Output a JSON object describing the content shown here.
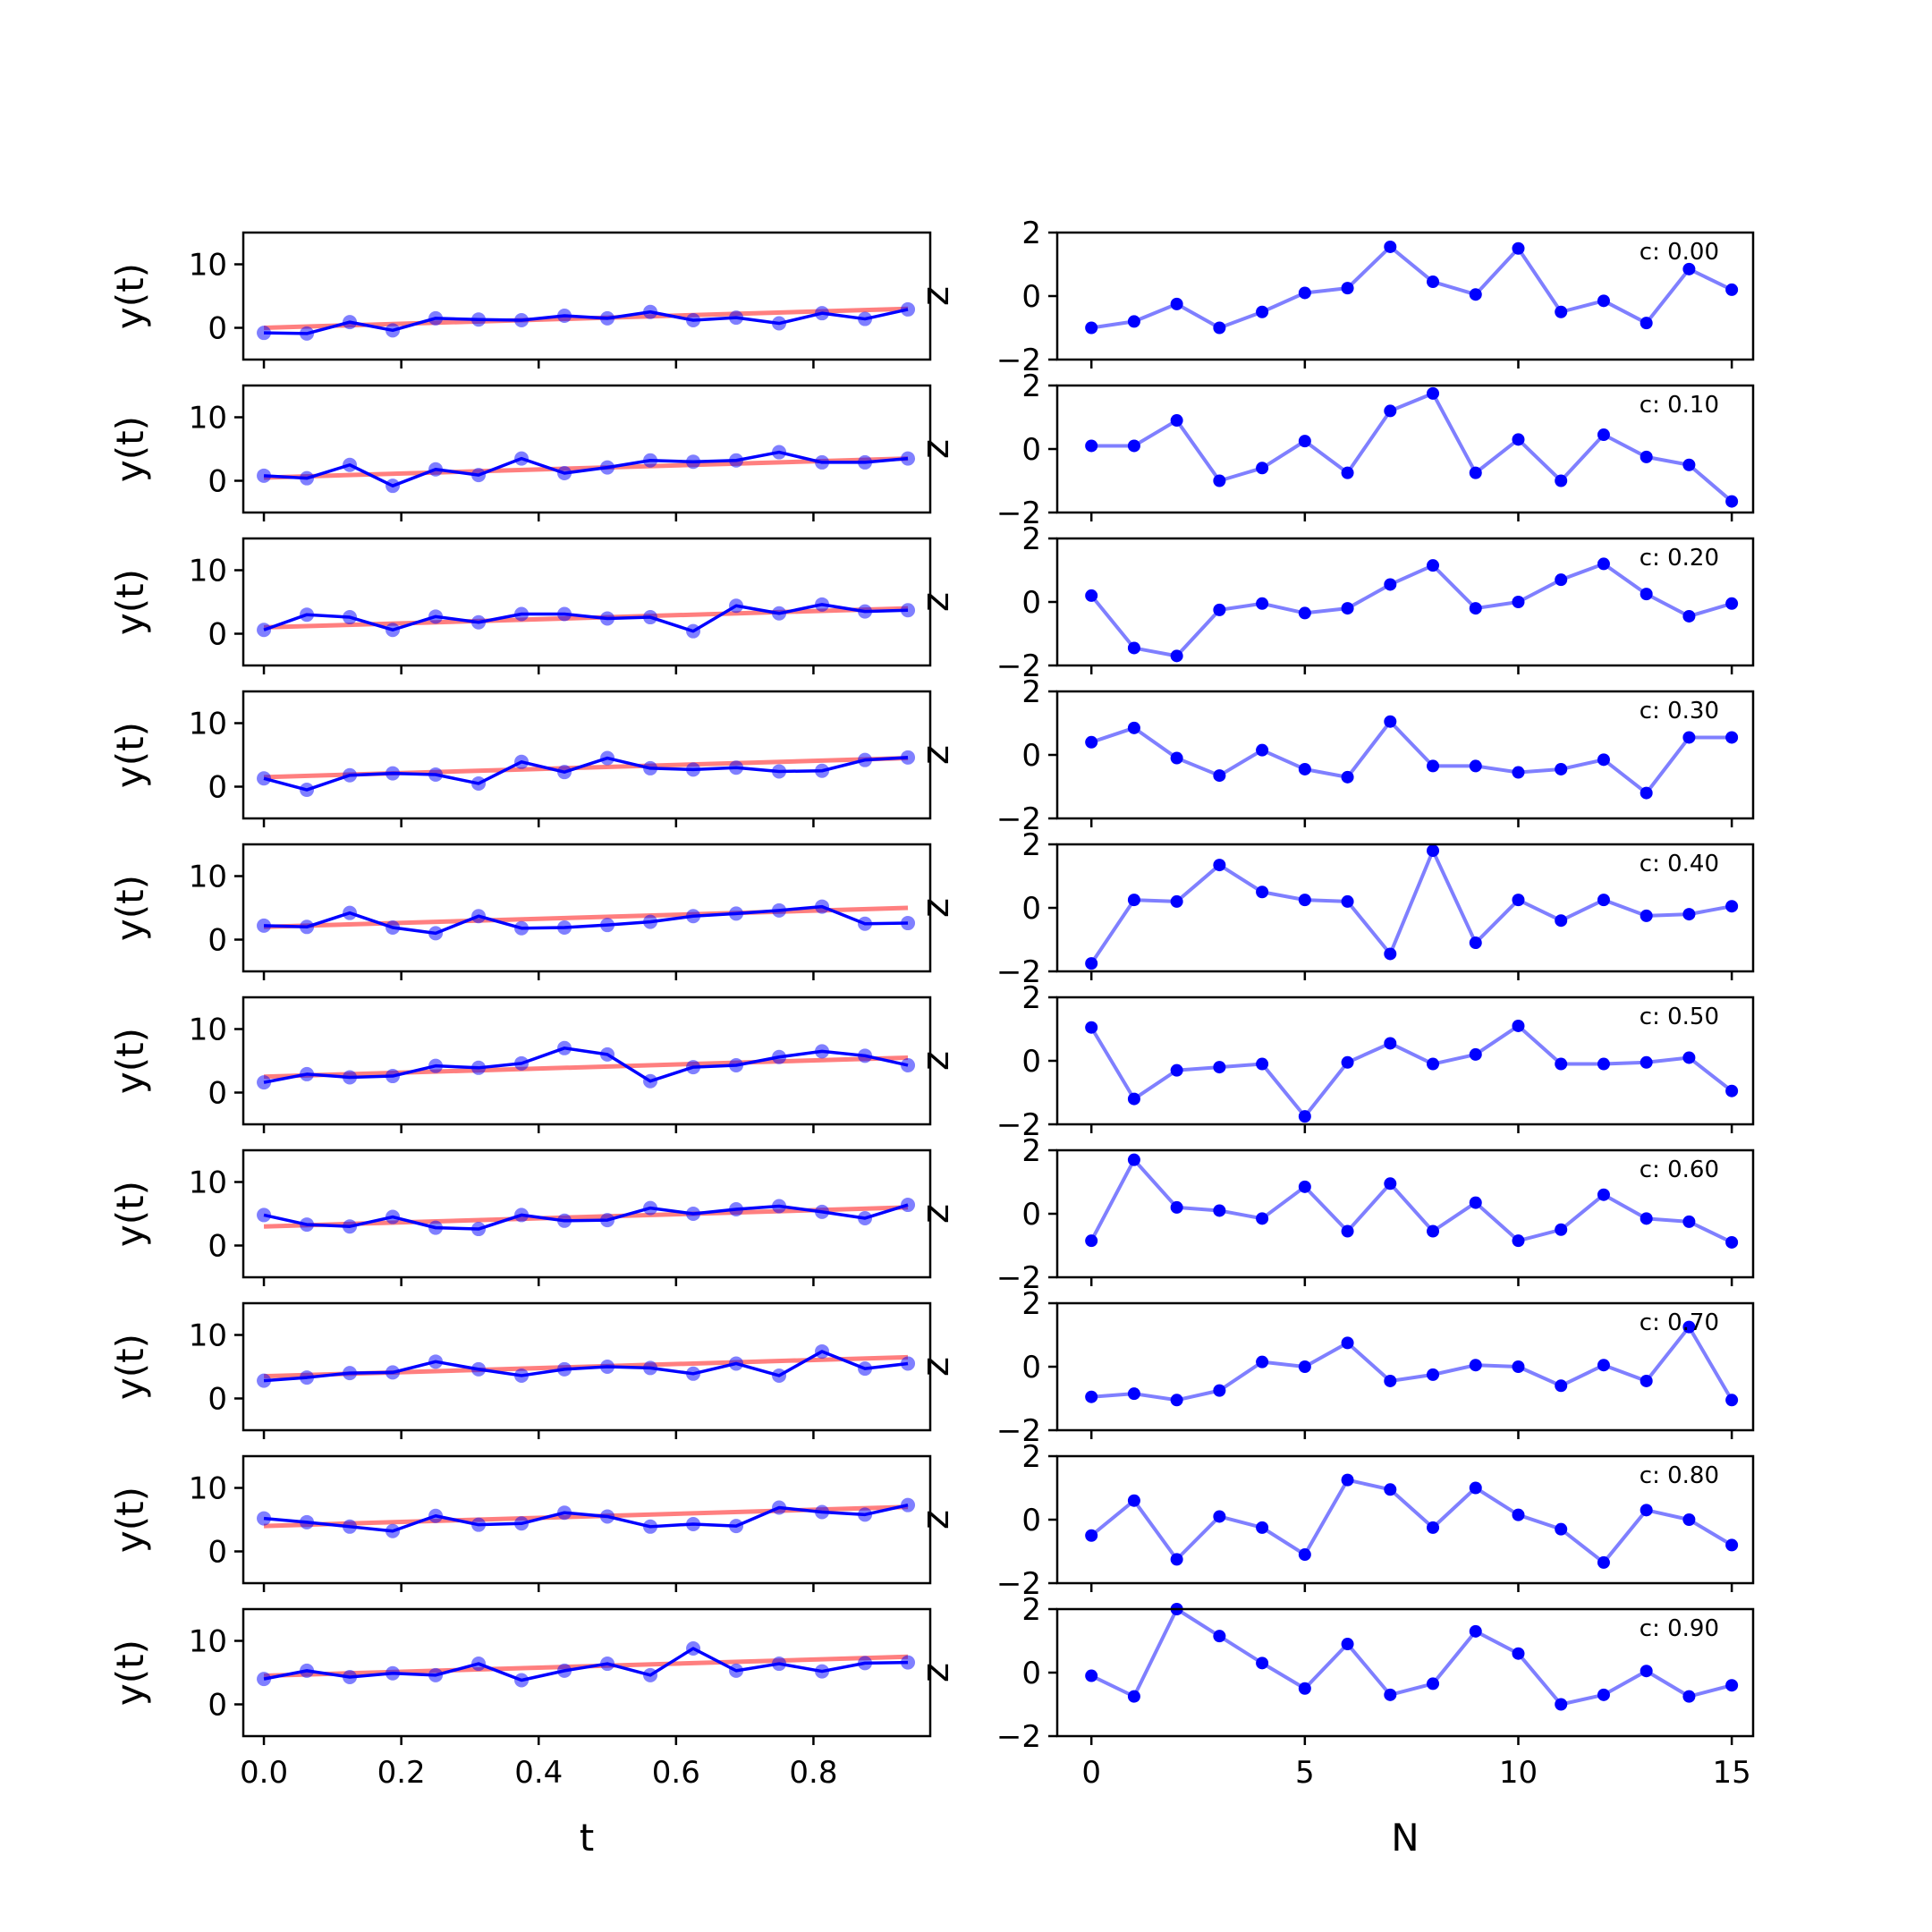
{
  "chart_data": {
    "type": "line",
    "layout": "10 rows x 2 columns of subplots",
    "colors": {
      "data": "#0000ff",
      "fit": "#ff0000",
      "residual": "#0000ff"
    },
    "left_column": {
      "xlabel": "t",
      "ylabel": "y(t)",
      "xticks": [
        "0.0",
        "0.2",
        "0.4",
        "0.6",
        "0.8"
      ],
      "yticks": [
        "0",
        "10"
      ],
      "xlim": [
        -0.03,
        0.97
      ],
      "ylim": [
        -5,
        15
      ],
      "t": [
        0,
        0.0625,
        0.125,
        0.1875,
        0.25,
        0.3125,
        0.375,
        0.4375,
        0.5,
        0.5625,
        0.625,
        0.6875,
        0.75,
        0.8125,
        0.875,
        0.9375
      ]
    },
    "right_column": {
      "xlabel": "N",
      "ylabel": "z",
      "xticks": [
        "0",
        "5",
        "10",
        "15"
      ],
      "yticks": [
        "−2",
        "0",
        "2"
      ],
      "xlim": [
        -0.8,
        15.5
      ],
      "ylim": [
        -2,
        2
      ],
      "N": [
        0,
        1,
        2,
        3,
        4,
        5,
        6,
        7,
        8,
        9,
        10,
        11,
        12,
        13,
        14,
        15
      ]
    },
    "rows": [
      {
        "label": "c: 0.00",
        "fit": [
          0,
          3
        ],
        "y": [
          -0.8,
          -0.9,
          0.9,
          -0.4,
          1.5,
          1.3,
          1.2,
          1.9,
          1.5,
          2.5,
          1.2,
          1.6,
          0.7,
          2.3,
          1.4,
          2.9
        ],
        "z": [
          -1.0,
          -0.8,
          -0.25,
          -1.0,
          -0.5,
          0.1,
          0.25,
          1.55,
          0.45,
          0.05,
          1.5,
          -0.5,
          -0.15,
          -0.85,
          0.85,
          0.2
        ]
      },
      {
        "label": "c: 0.10",
        "fit": [
          0.5,
          3.5
        ],
        "y": [
          0.8,
          0.4,
          2.5,
          -0.8,
          1.8,
          0.9,
          3.5,
          1.2,
          2.1,
          3.2,
          3.0,
          3.2,
          4.5,
          2.9,
          2.9,
          3.5
        ],
        "z": [
          0.1,
          0.1,
          0.9,
          -1.0,
          -0.6,
          0.25,
          -0.75,
          1.2,
          1.75,
          -0.75,
          0.3,
          -1.0,
          0.45,
          -0.25,
          -0.5,
          -1.65
        ]
      },
      {
        "label": "c: 0.20",
        "fit": [
          1,
          4
        ],
        "y": [
          0.6,
          3.0,
          2.6,
          0.6,
          2.7,
          1.8,
          3.1,
          3.1,
          2.4,
          2.6,
          0.4,
          4.4,
          3.2,
          4.6,
          3.5,
          3.7
        ],
        "z": [
          0.2,
          -1.45,
          -1.7,
          -0.25,
          -0.05,
          -0.35,
          -0.2,
          0.55,
          1.15,
          -0.2,
          0.0,
          0.7,
          1.2,
          0.25,
          -0.45,
          -0.05
        ]
      },
      {
        "label": "c: 0.30",
        "fit": [
          1.5,
          4.5
        ],
        "y": [
          1.3,
          -0.5,
          1.8,
          2.1,
          1.9,
          0.5,
          3.9,
          2.3,
          4.5,
          2.9,
          2.7,
          3.0,
          2.4,
          2.5,
          4.2,
          4.6
        ],
        "z": [
          0.4,
          0.85,
          -0.1,
          -0.65,
          0.15,
          -0.45,
          -0.7,
          1.05,
          -0.35,
          -0.35,
          -0.55,
          -0.45,
          -0.15,
          -1.2,
          0.55,
          0.55
        ]
      },
      {
        "label": "c: 0.40",
        "fit": [
          2,
          5
        ],
        "y": [
          2.2,
          2.0,
          4.2,
          1.9,
          1.0,
          3.7,
          1.8,
          1.9,
          2.3,
          2.8,
          3.7,
          4.1,
          4.6,
          5.2,
          2.5,
          2.6
        ],
        "z": [
          -1.75,
          0.25,
          0.2,
          1.35,
          0.5,
          0.25,
          0.2,
          -1.45,
          1.8,
          -1.1,
          0.25,
          -0.4,
          0.25,
          -0.25,
          -0.2,
          0.05
        ]
      },
      {
        "label": "c: 0.50",
        "fit": [
          2.5,
          5.5
        ],
        "y": [
          1.6,
          2.9,
          2.4,
          2.6,
          4.2,
          3.9,
          4.6,
          7.0,
          6.0,
          1.8,
          4.0,
          4.3,
          5.6,
          6.5,
          5.8,
          4.3
        ],
        "z": [
          1.05,
          -1.2,
          -0.3,
          -0.2,
          -0.1,
          -1.75,
          -0.05,
          0.55,
          -0.1,
          0.2,
          1.1,
          -0.1,
          -0.1,
          -0.05,
          0.1,
          -0.95
        ]
      },
      {
        "label": "c: 0.60",
        "fit": [
          3,
          6
        ],
        "y": [
          4.8,
          3.3,
          3.0,
          4.5,
          2.8,
          2.6,
          4.8,
          3.9,
          4.0,
          5.9,
          5.0,
          5.7,
          6.2,
          5.3,
          4.3,
          6.4
        ],
        "z": [
          -0.85,
          1.7,
          0.2,
          0.1,
          -0.15,
          0.85,
          -0.55,
          0.95,
          -0.55,
          0.35,
          -0.85,
          -0.5,
          0.6,
          -0.15,
          -0.25,
          -0.9
        ]
      },
      {
        "label": "c: 0.70",
        "fit": [
          3.5,
          6.5
        ],
        "y": [
          2.8,
          3.3,
          4.0,
          4.1,
          5.8,
          4.6,
          3.6,
          4.6,
          5.0,
          4.8,
          3.9,
          5.5,
          3.6,
          7.4,
          4.7,
          5.5
        ],
        "z": [
          -0.95,
          -0.85,
          -1.05,
          -0.75,
          0.15,
          0.0,
          0.75,
          -0.45,
          -0.25,
          0.05,
          0.0,
          -0.6,
          0.05,
          -0.45,
          1.25,
          -1.05
        ]
      },
      {
        "label": "c: 0.80",
        "fit": [
          4,
          7
        ],
        "y": [
          5.2,
          4.6,
          3.9,
          3.2,
          5.6,
          4.2,
          4.4,
          6.1,
          5.5,
          3.9,
          4.3,
          4.0,
          6.9,
          6.2,
          5.8,
          7.3
        ],
        "z": [
          -0.5,
          0.6,
          -1.25,
          0.1,
          -0.25,
          -1.1,
          1.25,
          0.95,
          -0.25,
          1.0,
          0.15,
          -0.3,
          -1.35,
          0.3,
          0.0,
          -0.8
        ]
      },
      {
        "label": "c: 0.90",
        "fit": [
          4.5,
          7.5
        ],
        "y": [
          4.0,
          5.3,
          4.3,
          4.9,
          4.6,
          6.4,
          3.8,
          5.3,
          6.4,
          4.6,
          8.8,
          5.3,
          6.4,
          5.2,
          6.5,
          6.6
        ],
        "z": [
          -0.1,
          -0.75,
          2.0,
          1.15,
          0.3,
          -0.5,
          0.9,
          -0.7,
          -0.35,
          1.3,
          0.6,
          -1.0,
          -0.7,
          0.05,
          -0.75,
          -0.4
        ]
      }
    ]
  }
}
